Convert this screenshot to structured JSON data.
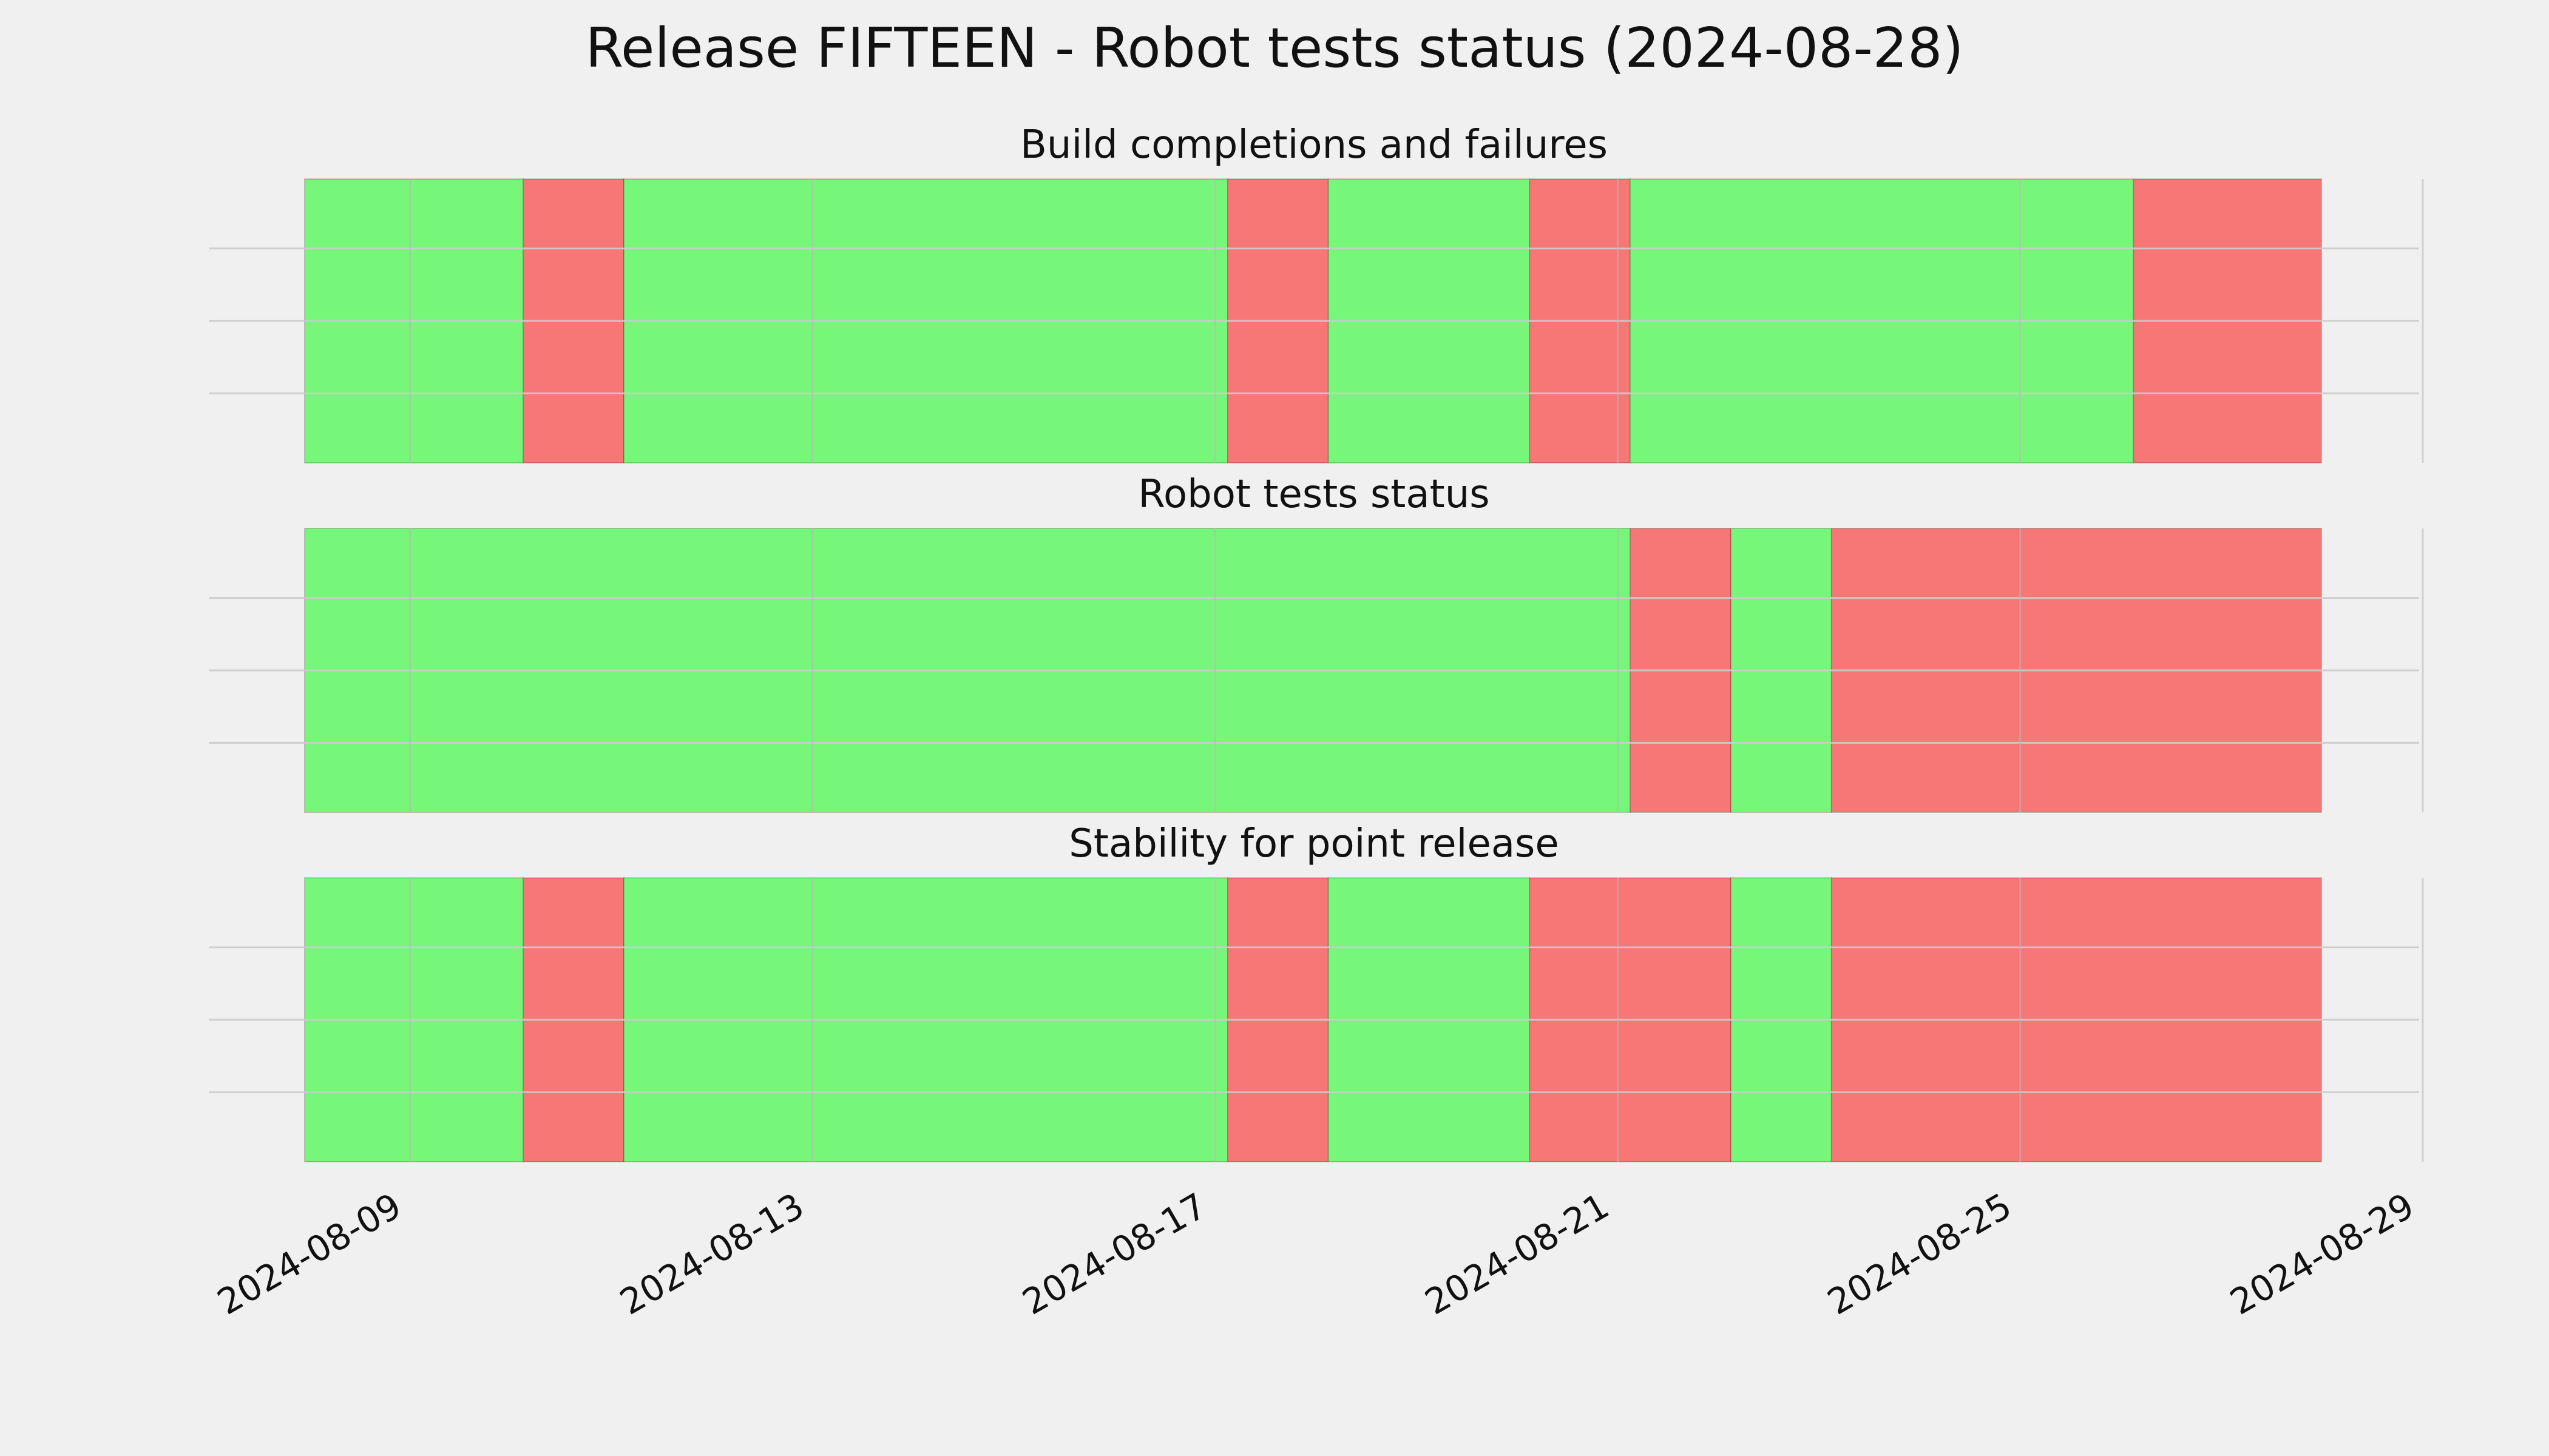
{
  "chart_data": {
    "type": "timeline",
    "title": "Release FIFTEEN - Robot tests status (2024-08-28)",
    "x_ticks": [
      "2024-08-09",
      "2024-08-13",
      "2024-08-17",
      "2024-08-21",
      "2024-08-25",
      "2024-08-29"
    ],
    "x_range": [
      "2024-08-07",
      "2024-08-29"
    ],
    "grid": true,
    "colors": {
      "pass": "#77f77a",
      "fail": "#f77777",
      "background": "#f0f0f0",
      "grid": "#cbcbcb"
    },
    "panels": [
      {
        "title": "Build completions and failures",
        "segments": [
          {
            "start": "2024-08-07 03:00",
            "end": "2024-08-10 03:00",
            "status": "pass"
          },
          {
            "start": "2024-08-10 03:00",
            "end": "2024-08-11 03:00",
            "status": "fail"
          },
          {
            "start": "2024-08-11 03:00",
            "end": "2024-08-17 03:00",
            "status": "pass"
          },
          {
            "start": "2024-08-17 03:00",
            "end": "2024-08-18 03:00",
            "status": "fail"
          },
          {
            "start": "2024-08-18 03:00",
            "end": "2024-08-20 03:00",
            "status": "pass"
          },
          {
            "start": "2024-08-20 03:00",
            "end": "2024-08-21 03:00",
            "status": "fail"
          },
          {
            "start": "2024-08-21 03:00",
            "end": "2024-08-26 03:00",
            "status": "pass"
          },
          {
            "start": "2024-08-26 03:00",
            "end": "2024-08-28 21:00",
            "status": "fail"
          }
        ]
      },
      {
        "title": "Robot tests status",
        "segments": [
          {
            "start": "2024-08-07 03:00",
            "end": "2024-08-21 03:00",
            "status": "pass"
          },
          {
            "start": "2024-08-21 03:00",
            "end": "2024-08-22 03:00",
            "status": "fail"
          },
          {
            "start": "2024-08-22 03:00",
            "end": "2024-08-23 03:00",
            "status": "pass"
          },
          {
            "start": "2024-08-23 03:00",
            "end": "2024-08-28 21:00",
            "status": "fail"
          }
        ]
      },
      {
        "title": "Stability for point release",
        "segments": [
          {
            "start": "2024-08-07 03:00",
            "end": "2024-08-10 03:00",
            "status": "pass"
          },
          {
            "start": "2024-08-10 03:00",
            "end": "2024-08-11 03:00",
            "status": "fail"
          },
          {
            "start": "2024-08-11 03:00",
            "end": "2024-08-17 03:00",
            "status": "pass"
          },
          {
            "start": "2024-08-17 03:00",
            "end": "2024-08-18 03:00",
            "status": "fail"
          },
          {
            "start": "2024-08-18 03:00",
            "end": "2024-08-20 03:00",
            "status": "pass"
          },
          {
            "start": "2024-08-20 03:00",
            "end": "2024-08-22 03:00",
            "status": "fail"
          },
          {
            "start": "2024-08-22 03:00",
            "end": "2024-08-23 03:00",
            "status": "pass"
          },
          {
            "start": "2024-08-23 03:00",
            "end": "2024-08-28 21:00",
            "status": "fail"
          }
        ]
      }
    ]
  }
}
